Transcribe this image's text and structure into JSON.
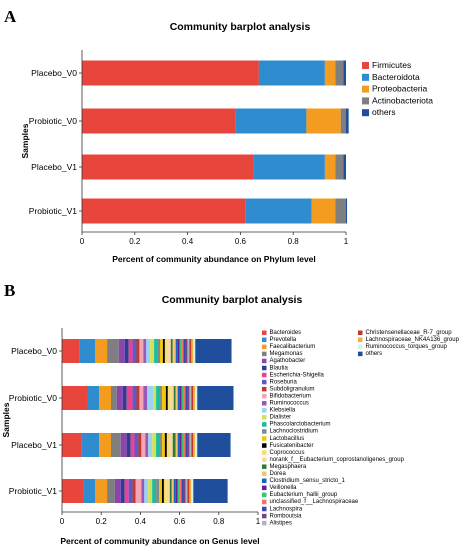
{
  "panels": {
    "a": "A",
    "b": "B"
  },
  "colors": {
    "Firmicutes": "#e8453c",
    "Bacteroidota": "#2e8ccf",
    "Proteobacteria": "#f39c1f",
    "Actinobacteriota": "#7f7f7f",
    "others": "#1f4e9c"
  },
  "chart_data": [
    {
      "type": "bar",
      "orientation": "horizontal",
      "stacked": true,
      "title": "Community barplot analysis",
      "xlabel": "Percent of community abundance on Phylum level",
      "ylabel": "Samples",
      "xlim": [
        0,
        1
      ],
      "xticks": [
        "0",
        "0.2",
        "0.4",
        "0.6",
        "0.8",
        "1"
      ],
      "legend_position": "right",
      "categories": [
        "Placebo_V0",
        "Probiotic_V0",
        "Placebo_V1",
        "Probiotic_V1"
      ],
      "series": [
        {
          "name": "Firmicutes",
          "color": "#e8453c",
          "values": [
            0.67,
            0.58,
            0.65,
            0.62
          ]
        },
        {
          "name": "Bacteroidota",
          "color": "#2e8ccf",
          "values": [
            0.25,
            0.27,
            0.27,
            0.25
          ]
        },
        {
          "name": "Proteobacteria",
          "color": "#f39c1f",
          "values": [
            0.04,
            0.13,
            0.04,
            0.09
          ]
        },
        {
          "name": "Actinobacteriota",
          "color": "#7f7f7f",
          "values": [
            0.03,
            0.02,
            0.03,
            0.04
          ]
        },
        {
          "name": "others",
          "color": "#1f4e9c",
          "values": [
            0.01,
            0.01,
            0.01,
            0.004
          ]
        }
      ]
    },
    {
      "type": "bar",
      "orientation": "horizontal",
      "stacked": true,
      "title": "Community barplot analysis",
      "xlabel": "Percent of community abundance on Genus level",
      "ylabel": "Samples",
      "xlim": [
        0,
        1
      ],
      "xticks": [
        "0",
        "0.2",
        "0.4",
        "0.6",
        "0.8",
        "1"
      ],
      "legend_position": "right",
      "categories": [
        "Placebo_V0",
        "Probiotic_V0",
        "Placebo_V1",
        "Probiotic_V1"
      ],
      "series": [
        {
          "name": "Bacteroides",
          "color": "#e8453c",
          "values": [
            0.09,
            0.13,
            0.1,
            0.11
          ]
        },
        {
          "name": "Prevotella",
          "color": "#2e8ccf",
          "values": [
            0.08,
            0.06,
            0.09,
            0.06
          ]
        },
        {
          "name": "Faecalibacterium",
          "color": "#f39c1f",
          "values": [
            0.06,
            0.06,
            0.06,
            0.06
          ]
        },
        {
          "name": "Megamonas",
          "color": "#7f7f7f",
          "values": [
            0.06,
            0.03,
            0.05,
            0.04
          ]
        },
        {
          "name": "Agathobacter",
          "color": "#8e44ad",
          "values": [
            0.03,
            0.03,
            0.03,
            0.03
          ]
        },
        {
          "name": "Blautia",
          "color": "#2c3e93",
          "values": [
            0.02,
            0.02,
            0.02,
            0.02
          ]
        },
        {
          "name": "Escherichia-Shigella",
          "color": "#e84393",
          "values": [
            0.02,
            0.03,
            0.02,
            0.02
          ]
        },
        {
          "name": "Roseburia",
          "color": "#5c5cc9",
          "values": [
            0.02,
            0.02,
            0.02,
            0.02
          ]
        },
        {
          "name": "Subdoligranulum",
          "color": "#c0392b",
          "values": [
            0.015,
            0.015,
            0.015,
            0.015
          ]
        },
        {
          "name": "Bifidobacterium",
          "color": "#f4a6b6",
          "values": [
            0.02,
            0.02,
            0.02,
            0.03
          ]
        },
        {
          "name": "Ruminococcus",
          "color": "#9b59b6",
          "values": [
            0.015,
            0.02,
            0.015,
            0.015
          ]
        },
        {
          "name": "Klebsiella",
          "color": "#9ad4f5",
          "values": [
            0.02,
            0.03,
            0.02,
            0.02
          ]
        },
        {
          "name": "Dialister",
          "color": "#d4e157",
          "values": [
            0.02,
            0.015,
            0.02,
            0.02
          ]
        },
        {
          "name": "Phascolarctobacterium",
          "color": "#1abc9c",
          "values": [
            0.015,
            0.015,
            0.015,
            0.02
          ]
        },
        {
          "name": "Lachnoclostridium",
          "color": "#7f8c8d",
          "values": [
            0.015,
            0.015,
            0.015,
            0.015
          ]
        },
        {
          "name": "Lactobacillus",
          "color": "#f1c40f",
          "values": [
            0.015,
            0.02,
            0.015,
            0.015
          ]
        },
        {
          "name": "Fusicatenibacter",
          "color": "#000000",
          "values": [
            0.01,
            0.01,
            0.01,
            0.01
          ]
        },
        {
          "name": "Coprococcus",
          "color": "#f7dc6f",
          "values": [
            0.015,
            0.015,
            0.015,
            0.015
          ]
        },
        {
          "name": "norank_f__Eubacterium_coprostanoligenes_group",
          "color": "#fad7a0",
          "values": [
            0.015,
            0.015,
            0.015,
            0.015
          ]
        },
        {
          "name": "Megasphaera",
          "color": "#2e7d32",
          "values": [
            0.01,
            0.01,
            0.015,
            0.01
          ]
        },
        {
          "name": "Dorea",
          "color": "#f8c471",
          "values": [
            0.015,
            0.01,
            0.01,
            0.01
          ]
        },
        {
          "name": "Clostridium_sensu_stricto_1",
          "color": "#1565c0",
          "values": [
            0.01,
            0.01,
            0.01,
            0.01
          ]
        },
        {
          "name": "Veillonella",
          "color": "#6a1b9a",
          "values": [
            0.01,
            0.01,
            0.01,
            0.01
          ]
        },
        {
          "name": "Eubacterium_hallii_group",
          "color": "#2ecc71",
          "values": [
            0.01,
            0.01,
            0.01,
            0.01
          ]
        },
        {
          "name": "unclassified_f__Lachnospiraceae",
          "color": "#ff6f61",
          "values": [
            0.01,
            0.01,
            0.01,
            0.01
          ]
        },
        {
          "name": "Lachnospira",
          "color": "#3949ab",
          "values": [
            0.01,
            0.01,
            0.01,
            0.01
          ]
        },
        {
          "name": "Romboutsia",
          "color": "#76448a",
          "values": [
            0.01,
            0.01,
            0.01,
            0.01
          ]
        },
        {
          "name": "Alistipes",
          "color": "#aab7b8",
          "values": [
            0.01,
            0.01,
            0.01,
            0.01
          ]
        },
        {
          "name": "Christensenellaceae_R-7_group",
          "color": "#c0392b",
          "values": [
            0.01,
            0.01,
            0.01,
            0.01
          ]
        },
        {
          "name": "Lachnospiraceae_NK4A136_group",
          "color": "#f5b041",
          "values": [
            0.01,
            0.01,
            0.01,
            0.01
          ]
        },
        {
          "name": "Ruminococcus_torques_group",
          "color": "#d5f5e3",
          "values": [
            0.01,
            0.01,
            0.01,
            0.01
          ]
        },
        {
          "name": "others",
          "color": "#1f4e9c",
          "values": [
            0.185,
            0.185,
            0.17,
            0.175
          ]
        }
      ]
    }
  ]
}
